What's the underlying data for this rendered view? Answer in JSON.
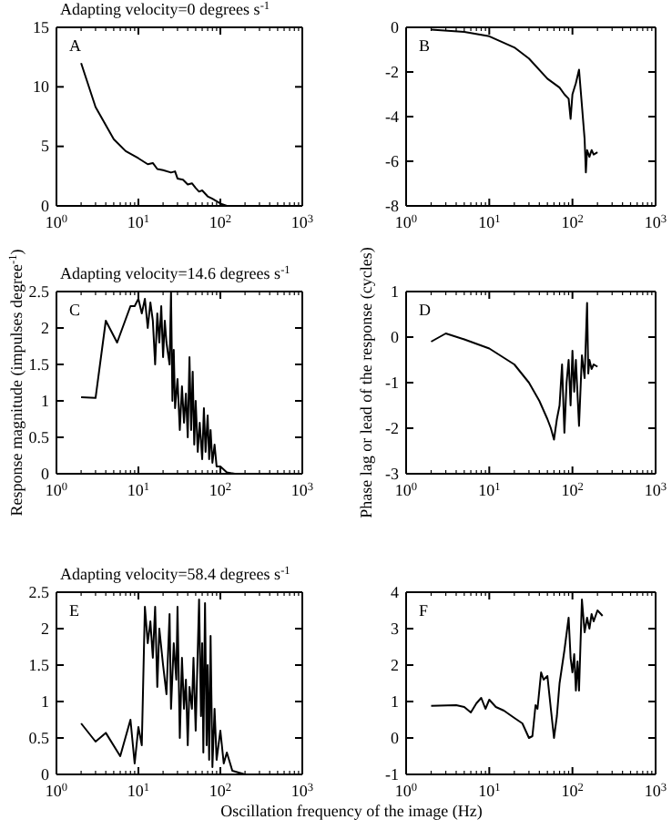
{
  "chart_data": [
    {
      "type": "line",
      "title": "Adapting velocity=0 degrees s$^{-1}$",
      "annotations": [
        "A"
      ],
      "xlim": [
        1,
        1000
      ],
      "log": "x",
      "ylim": [
        0,
        15
      ],
      "yticks": [
        0,
        5,
        10,
        15
      ],
      "xticks": [
        {
          "value": 1,
          "label": "10$^{0}$"
        },
        {
          "value": 10,
          "label": "10$^{1}$"
        },
        {
          "value": 100,
          "label": "10$^{2}$"
        },
        {
          "value": 1000,
          "label": "10$^{3}$"
        }
      ],
      "series": [
        {
          "color": "#000000",
          "x": [
            2,
            3,
            5,
            7,
            10,
            13,
            15,
            17,
            20,
            25,
            28,
            30,
            35,
            40,
            45,
            50,
            55,
            60,
            70,
            80,
            90,
            100,
            120,
            150
          ],
          "values": [
            12,
            8.3,
            5.6,
            4.6,
            4,
            3.5,
            3.6,
            3.1,
            3.0,
            2.8,
            2.9,
            2.3,
            2.2,
            1.8,
            1.9,
            1.5,
            1.2,
            1.3,
            0.8,
            0.6,
            0.4,
            0.2,
            0,
            0
          ]
        }
      ]
    },
    {
      "type": "line",
      "annotations": [
        "B"
      ],
      "xlim": [
        1,
        1000
      ],
      "log": "x",
      "ylim": [
        -8,
        0
      ],
      "yticks": [
        0,
        -2,
        -4,
        -6,
        -8
      ],
      "xticks": [
        {
          "value": 1,
          "label": "10$^{0}$"
        },
        {
          "value": 10,
          "label": "10$^{1}$"
        },
        {
          "value": 100,
          "label": "10$^{2}$"
        },
        {
          "value": 1000,
          "label": "10$^{3}$"
        }
      ],
      "series": [
        {
          "color": "#000000",
          "x": [
            2,
            5,
            10,
            20,
            30,
            50,
            70,
            80,
            90,
            95,
            100,
            110,
            120,
            130,
            140,
            145,
            150,
            160,
            170,
            180,
            200
          ],
          "values": [
            -0.1,
            -0.2,
            -0.4,
            -0.9,
            -1.4,
            -2.3,
            -2.7,
            -3.0,
            -3.2,
            -4.1,
            -3.0,
            -2.5,
            -1.9,
            -3.5,
            -5.0,
            -6.5,
            -5.5,
            -5.8,
            -5.5,
            -5.7,
            -5.6
          ]
        }
      ]
    },
    {
      "type": "line",
      "title": "Adapting velocity=14.6 degrees s$^{-1}$",
      "ylabel": "Response magnitude (impulses degree$^{-1}$)",
      "annotations": [
        "C"
      ],
      "xlim": [
        1,
        1000
      ],
      "log": "x",
      "ylim": [
        0,
        2.5
      ],
      "yticks": [
        0,
        0.5,
        1,
        1.5,
        2,
        2.5
      ],
      "xticks": [
        {
          "value": 1,
          "label": "10$^{0}$"
        },
        {
          "value": 10,
          "label": "10$^{1}$"
        },
        {
          "value": 100,
          "label": "10$^{2}$"
        },
        {
          "value": 1000,
          "label": "10$^{3}$"
        }
      ],
      "series": [
        {
          "color": "#000000",
          "x": [
            2,
            3,
            4,
            5.5,
            8,
            9,
            10,
            11,
            12,
            13,
            14,
            15,
            16,
            17,
            18,
            19,
            20,
            21,
            22,
            24,
            25,
            26,
            27,
            28,
            30,
            32,
            34,
            36,
            38,
            40,
            42,
            44,
            46,
            48,
            50,
            53,
            56,
            60,
            63,
            66,
            70,
            73,
            76,
            80,
            85,
            90,
            100,
            120,
            150
          ],
          "values": [
            1.05,
            1.04,
            2.1,
            1.8,
            2.3,
            2.3,
            2.4,
            2.2,
            2.4,
            2.0,
            2.35,
            2.1,
            1.5,
            2.2,
            1.8,
            2.3,
            1.6,
            2.1,
            1.8,
            1.5,
            2.5,
            1.0,
            1.7,
            0.9,
            1.3,
            0.6,
            1.2,
            0.7,
            1.1,
            0.5,
            1.6,
            0.6,
            1.4,
            0.4,
            1.0,
            0.3,
            0.7,
            0.2,
            0.9,
            0.3,
            0.8,
            0.2,
            0.6,
            0.15,
            0.4,
            0.1,
            0.1,
            0.02,
            0
          ]
        }
      ]
    },
    {
      "type": "line",
      "ylabel": "Phase lag or lead of the response (cycles)",
      "annotations": [
        "D"
      ],
      "xlim": [
        1,
        1000
      ],
      "log": "x",
      "ylim": [
        -3,
        1
      ],
      "yticks": [
        1,
        0,
        -1,
        -2,
        -3
      ],
      "xticks": [
        {
          "value": 1,
          "label": "10$^{0}$"
        },
        {
          "value": 10,
          "label": "10$^{1}$"
        },
        {
          "value": 100,
          "label": "10$^{2}$"
        },
        {
          "value": 1000,
          "label": "10$^{3}$"
        }
      ],
      "series": [
        {
          "color": "#000000",
          "x": [
            2,
            3,
            5,
            10,
            20,
            30,
            40,
            50,
            55,
            60,
            65,
            70,
            75,
            80,
            85,
            90,
            95,
            100,
            105,
            110,
            120,
            130,
            140,
            150,
            155,
            160,
            170,
            180,
            200
          ],
          "values": [
            -0.1,
            0.08,
            -0.05,
            -0.25,
            -0.6,
            -1.0,
            -1.4,
            -1.8,
            -2.0,
            -2.25,
            -1.8,
            -1.5,
            -0.6,
            -2.1,
            -1.0,
            -0.5,
            -1.5,
            -0.3,
            -1.2,
            -0.5,
            -1.95,
            -0.4,
            -0.9,
            0.75,
            -0.8,
            -0.5,
            -0.7,
            -0.6,
            -0.65
          ]
        }
      ]
    },
    {
      "type": "line",
      "title": "Adapting velocity=58.4 degrees s$^{-1}$",
      "xlabel": "Oscillation frequency of the image (Hz)",
      "annotations": [
        "E"
      ],
      "xlim": [
        1,
        1000
      ],
      "log": "x",
      "ylim": [
        0,
        2.5
      ],
      "yticks": [
        0,
        0.5,
        1,
        1.5,
        2,
        2.5
      ],
      "xticks": [
        {
          "value": 1,
          "label": "10$^{0}$"
        },
        {
          "value": 10,
          "label": "10$^{1}$"
        },
        {
          "value": 100,
          "label": "10$^{2}$"
        },
        {
          "value": 1000,
          "label": "10$^{3}$"
        }
      ],
      "series": [
        {
          "color": "#000000",
          "x": [
            2,
            3,
            4,
            6,
            8,
            9,
            10,
            11,
            12,
            13,
            14,
            15,
            16,
            17,
            18,
            20,
            22,
            24,
            25,
            27,
            29,
            30,
            32,
            34,
            36,
            38,
            40,
            42,
            45,
            47,
            50,
            55,
            58,
            60,
            62,
            65,
            68,
            70,
            73,
            76,
            80,
            85,
            90,
            100,
            110,
            120,
            140,
            200
          ],
          "values": [
            0.7,
            0.45,
            0.57,
            0.25,
            0.75,
            0.15,
            0.65,
            0.4,
            2.3,
            1.8,
            2.1,
            1.6,
            2.3,
            1.2,
            2.0,
            1.5,
            1.1,
            2.2,
            0.9,
            1.8,
            1.3,
            2.3,
            0.5,
            1.6,
            0.9,
            1.3,
            0.4,
            1.2,
            0.9,
            1.6,
            0.6,
            2.4,
            0.8,
            1.8,
            0.3,
            2.35,
            0.4,
            1.5,
            0.2,
            1.9,
            0.1,
            0.9,
            0.2,
            0.6,
            0.15,
            0.3,
            0.05,
            0
          ]
        }
      ]
    },
    {
      "type": "line",
      "annotations": [
        "F"
      ],
      "xlim": [
        1,
        1000
      ],
      "log": "x",
      "ylim": [
        -1,
        4
      ],
      "yticks": [
        -1,
        0,
        1,
        2,
        3,
        4
      ],
      "xticks": [
        {
          "value": 1,
          "label": "10$^{0}$"
        },
        {
          "value": 10,
          "label": "10$^{1}$"
        },
        {
          "value": 100,
          "label": "10$^{2}$"
        },
        {
          "value": 1000,
          "label": "10$^{3}$"
        }
      ],
      "series": [
        {
          "color": "#000000",
          "x": [
            2,
            4,
            5,
            6,
            7,
            8,
            9,
            10,
            12,
            15,
            20,
            25,
            30,
            33,
            36,
            38,
            42,
            45,
            50,
            55,
            60,
            65,
            70,
            80,
            90,
            95,
            100,
            105,
            110,
            115,
            120,
            130,
            140,
            150,
            160,
            170,
            180,
            200,
            220,
            230
          ],
          "values": [
            0.88,
            0.9,
            0.85,
            0.7,
            0.95,
            1.1,
            0.8,
            1.05,
            0.85,
            0.75,
            0.55,
            0.4,
            0.0,
            0.05,
            0.9,
            0.8,
            1.8,
            1.6,
            1.7,
            0.8,
            0.0,
            0.6,
            1.5,
            2.4,
            3.3,
            2.2,
            1.8,
            2.3,
            1.3,
            2.1,
            1.3,
            3.8,
            2.9,
            3.3,
            3.0,
            3.4,
            3.2,
            3.5,
            3.4,
            3.35
          ]
        }
      ]
    }
  ]
}
